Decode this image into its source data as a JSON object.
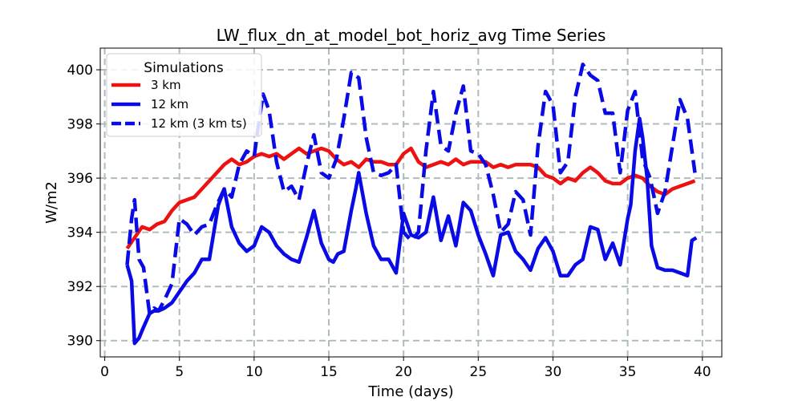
{
  "chart_data": {
    "type": "line",
    "title": "LW_flux_dn_at_model_bot_horiz_avg Time Series",
    "xlabel": "Time (days)",
    "ylabel": "W/m2",
    "xlim": [
      -0.3,
      41.3
    ],
    "ylim": [
      389.4,
      400.8
    ],
    "xticks": [
      0,
      5,
      10,
      15,
      20,
      25,
      30,
      35,
      40
    ],
    "yticks": [
      390,
      392,
      394,
      396,
      398,
      400
    ],
    "grid": true,
    "legend": {
      "title": "Simulations",
      "position": "top-left"
    },
    "series": [
      {
        "name": "3 km",
        "color": "#ee1111",
        "dash": "solid",
        "x": [
          1.5,
          2,
          2.5,
          3,
          3.5,
          4,
          4.5,
          5,
          5.5,
          6,
          6.5,
          7,
          7.5,
          8,
          8.5,
          9,
          9.5,
          10,
          10.5,
          11,
          11.5,
          12,
          12.5,
          13,
          13.5,
          14,
          14.5,
          15,
          15.5,
          16,
          16.5,
          17,
          17.5,
          18,
          18.5,
          19,
          19.5,
          20,
          20.5,
          21,
          21.5,
          22,
          22.5,
          23,
          23.5,
          24,
          24.5,
          25,
          25.5,
          26,
          26.5,
          27,
          27.5,
          28,
          28.5,
          29,
          29.5,
          30,
          30.5,
          31,
          31.5,
          32,
          32.5,
          33,
          33.5,
          34,
          34.5,
          35,
          35.5,
          36,
          36.5,
          37,
          37.5,
          38,
          38.5,
          39,
          39.5
        ],
        "y": [
          393.4,
          393.8,
          394.2,
          394.1,
          394.3,
          394.4,
          394.8,
          395.1,
          395.2,
          395.3,
          395.6,
          395.9,
          396.2,
          396.5,
          396.7,
          396.5,
          396.6,
          396.8,
          396.9,
          396.8,
          396.9,
          396.7,
          396.9,
          397.1,
          396.9,
          397.0,
          397.1,
          397.0,
          396.7,
          396.5,
          396.6,
          396.4,
          396.7,
          396.6,
          396.6,
          396.5,
          396.5,
          396.9,
          397.1,
          396.6,
          396.4,
          396.5,
          396.6,
          396.5,
          396.7,
          396.5,
          396.6,
          396.6,
          396.6,
          396.4,
          396.5,
          396.4,
          396.5,
          396.5,
          396.5,
          396.4,
          396.1,
          396.0,
          395.8,
          396.0,
          395.9,
          396.2,
          396.4,
          396.2,
          395.9,
          395.8,
          395.8,
          396.0,
          396.1,
          396.0,
          395.7,
          395.5,
          395.4,
          395.6,
          395.7,
          395.8,
          395.9
        ]
      },
      {
        "name": "12 km",
        "color": "#0a0ae6",
        "dash": "solid",
        "x": [
          1.5,
          1.8,
          2,
          2.3,
          2.6,
          3,
          3.3,
          3.6,
          4,
          4.5,
          5,
          5.5,
          6,
          6.5,
          7,
          7.3,
          7.6,
          8,
          8.5,
          9,
          9.5,
          10,
          10.5,
          11,
          11.5,
          12,
          12.5,
          13,
          13.5,
          14,
          14.5,
          15,
          15.3,
          15.6,
          16,
          16.5,
          16.8,
          17,
          17.5,
          18,
          18.5,
          19,
          19.5,
          20,
          20.5,
          21,
          21.5,
          22,
          22.5,
          23,
          23.5,
          24,
          24.5,
          25,
          25.5,
          26,
          26.5,
          27,
          27.5,
          28,
          28.5,
          29,
          29.5,
          30,
          30.5,
          31,
          31.5,
          32,
          32.5,
          33,
          33.5,
          34,
          34.5,
          35,
          35.2,
          35.5,
          35.8,
          36,
          36.3,
          36.6,
          37,
          37.5,
          38,
          38.5,
          39,
          39.3,
          39.6
        ],
        "y": [
          392.8,
          392.2,
          389.9,
          390.1,
          390.5,
          391.0,
          391.1,
          391.1,
          391.2,
          391.4,
          391.8,
          392.2,
          392.5,
          393.0,
          393.0,
          394.0,
          395.0,
          395.6,
          394.2,
          393.6,
          393.3,
          393.5,
          394.2,
          394.0,
          393.5,
          393.2,
          393.0,
          392.9,
          393.8,
          394.8,
          393.6,
          393.0,
          392.9,
          393.2,
          393.3,
          394.8,
          395.6,
          396.2,
          394.7,
          393.5,
          393.0,
          393.0,
          392.5,
          394.7,
          393.9,
          393.8,
          394.0,
          395.3,
          393.7,
          394.6,
          393.5,
          395.1,
          394.8,
          393.9,
          393.2,
          392.4,
          393.9,
          394.0,
          393.3,
          393.0,
          392.6,
          393.4,
          393.8,
          393.3,
          392.4,
          392.4,
          392.8,
          393.0,
          394.2,
          394.1,
          393.0,
          393.6,
          392.8,
          394.5,
          395.0,
          397.0,
          398.2,
          397.5,
          396.0,
          393.5,
          392.7,
          392.6,
          392.6,
          392.5,
          392.4,
          393.7,
          393.8
        ]
      },
      {
        "name": "12 km (3 km ts)",
        "color": "#0a0ae6",
        "dash": "dashed",
        "x": [
          1.5,
          1.8,
          2,
          2.3,
          2.6,
          3,
          3.3,
          3.6,
          4,
          4.5,
          5,
          5.5,
          6,
          6.5,
          7,
          7.5,
          8,
          8.5,
          9,
          9.5,
          10,
          10.3,
          10.6,
          11,
          11.5,
          12,
          12.5,
          13,
          13.5,
          14,
          14.5,
          15,
          15.5,
          16,
          16.5,
          17,
          17.5,
          18,
          18.5,
          19,
          19.5,
          20,
          20.5,
          21,
          21.5,
          22,
          22.5,
          23,
          23.5,
          24,
          24.5,
          25,
          25.5,
          26,
          26.5,
          27,
          27.5,
          28,
          28.5,
          29,
          29.5,
          30,
          30.5,
          31,
          31.5,
          32,
          32.5,
          33,
          33.5,
          34,
          34.5,
          35,
          35.5,
          36,
          36.5,
          37,
          37.5,
          38,
          38.5,
          39,
          39.5
        ],
        "y": [
          392.8,
          394.5,
          395.2,
          393.0,
          392.7,
          391.0,
          391.2,
          391.1,
          391.5,
          392.1,
          394.5,
          394.3,
          393.9,
          394.2,
          394.3,
          395.0,
          395.6,
          395.3,
          396.5,
          397.0,
          396.8,
          398.0,
          399.1,
          398.5,
          396.6,
          395.5,
          395.7,
          395.2,
          396.5,
          397.6,
          396.2,
          396.0,
          396.7,
          398.2,
          399.9,
          399.7,
          397.5,
          396.2,
          396.1,
          396.2,
          396.5,
          394.0,
          393.7,
          394.0,
          397.0,
          399.2,
          397.2,
          397.0,
          398.4,
          399.4,
          397.0,
          396.9,
          396.5,
          395.4,
          394.0,
          394.3,
          395.5,
          395.2,
          393.9,
          397.2,
          399.2,
          398.7,
          396.2,
          396.6,
          399.0,
          400.2,
          399.8,
          399.6,
          398.4,
          398.4,
          396.2,
          398.5,
          399.2,
          396.7,
          396.0,
          394.7,
          395.5,
          397.2,
          398.9,
          398.2,
          396.2
        ]
      }
    ]
  }
}
